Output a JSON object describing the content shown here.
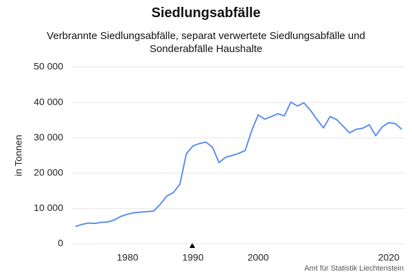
{
  "chart_data": {
    "type": "line",
    "title": "Siedlungsabfälle",
    "subtitle": "Verbrannte Siedlungsabfälle, separat verwertete Siedlungsabfälle und Sonderabfälle Haushalte",
    "y_label": "in Tonnen",
    "source": "Amt für Statistik Liechtenstein",
    "x": [
      1972,
      1973,
      1974,
      1975,
      1976,
      1977,
      1978,
      1979,
      1980,
      1981,
      1982,
      1983,
      1984,
      1985,
      1986,
      1987,
      1988,
      1989,
      1990,
      1991,
      1992,
      1993,
      1994,
      1995,
      1996,
      1997,
      1998,
      1999,
      2000,
      2001,
      2002,
      2003,
      2004,
      2005,
      2006,
      2007,
      2008,
      2009,
      2010,
      2011,
      2012,
      2013,
      2014,
      2015,
      2016,
      2017,
      2018,
      2019,
      2020,
      2021,
      2022
    ],
    "series": [
      {
        "name": "Siedlungsabfälle",
        "color": "#5b8def",
        "values": [
          4900,
          5500,
          5900,
          5800,
          6100,
          6200,
          6800,
          7800,
          8400,
          8800,
          9000,
          9100,
          9300,
          11200,
          13500,
          14500,
          16800,
          25500,
          27700,
          28400,
          28800,
          27300,
          23000,
          24500,
          25000,
          25600,
          26400,
          32000,
          36500,
          35300,
          36000,
          36800,
          36200,
          40100,
          39000,
          39900,
          37800,
          35200,
          32800,
          36000,
          35200,
          33300,
          31400,
          32400,
          32700,
          33700,
          30600,
          33100,
          34300,
          34000,
          32400
        ]
      }
    ],
    "xlim": [
      1971.5,
      2022.5
    ],
    "xticks": [
      1980,
      1990,
      2000,
      2020
    ],
    "ylim": [
      0,
      50000
    ],
    "yticks": [
      0,
      {
        "value": 10000,
        "label": "10 000"
      },
      {
        "value": 20000,
        "label": "20 000"
      },
      {
        "value": 30000,
        "label": "30 000"
      },
      {
        "value": 40000,
        "label": "40 000"
      },
      {
        "value": 50000,
        "label": "50 000"
      }
    ],
    "grid": true
  }
}
